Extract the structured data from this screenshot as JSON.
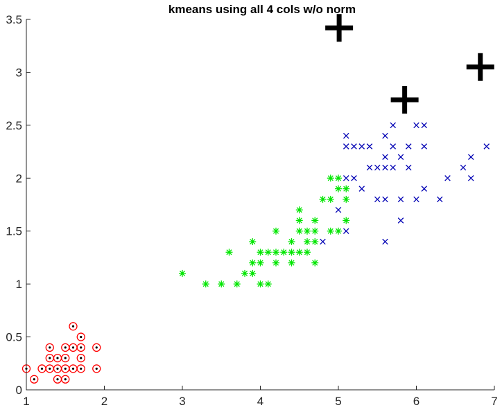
{
  "chart_data": {
    "type": "scatter",
    "title": "kmeans using all 4 cols w/o norm",
    "xlabel": "",
    "ylabel": "",
    "xlim": [
      1,
      7
    ],
    "ylim": [
      0,
      3.5
    ],
    "xticks": [
      "1",
      "2",
      "3",
      "4",
      "5",
      "6",
      "7"
    ],
    "yticks": [
      "0",
      "0.5",
      "1",
      "1.5",
      "2",
      "2.5",
      "3",
      "3.5"
    ],
    "grid": false,
    "series": [
      {
        "marker": "circle-dot",
        "color": "#ff0000",
        "points": [
          [
            1.0,
            0.2
          ],
          [
            1.1,
            0.1
          ],
          [
            1.2,
            0.2
          ],
          [
            1.3,
            0.2
          ],
          [
            1.3,
            0.3
          ],
          [
            1.3,
            0.4
          ],
          [
            1.4,
            0.1
          ],
          [
            1.4,
            0.2
          ],
          [
            1.4,
            0.3
          ],
          [
            1.5,
            0.1
          ],
          [
            1.5,
            0.2
          ],
          [
            1.5,
            0.3
          ],
          [
            1.5,
            0.4
          ],
          [
            1.6,
            0.2
          ],
          [
            1.6,
            0.4
          ],
          [
            1.6,
            0.6
          ],
          [
            1.7,
            0.2
          ],
          [
            1.7,
            0.3
          ],
          [
            1.7,
            0.4
          ],
          [
            1.7,
            0.5
          ],
          [
            1.9,
            0.2
          ],
          [
            1.9,
            0.4
          ]
        ]
      },
      {
        "marker": "asterisk",
        "color": "#00e600",
        "points": [
          [
            3.0,
            1.1
          ],
          [
            3.3,
            1.0
          ],
          [
            3.5,
            1.0
          ],
          [
            3.6,
            1.3
          ],
          [
            3.7,
            1.0
          ],
          [
            3.8,
            1.1
          ],
          [
            3.9,
            1.1
          ],
          [
            3.9,
            1.2
          ],
          [
            3.9,
            1.4
          ],
          [
            4.0,
            1.0
          ],
          [
            4.0,
            1.2
          ],
          [
            4.0,
            1.3
          ],
          [
            4.1,
            1.0
          ],
          [
            4.1,
            1.3
          ],
          [
            4.2,
            1.2
          ],
          [
            4.2,
            1.3
          ],
          [
            4.2,
            1.5
          ],
          [
            4.3,
            1.3
          ],
          [
            4.4,
            1.2
          ],
          [
            4.4,
            1.3
          ],
          [
            4.4,
            1.4
          ],
          [
            4.5,
            1.3
          ],
          [
            4.5,
            1.5
          ],
          [
            4.5,
            1.6
          ],
          [
            4.5,
            1.7
          ],
          [
            4.6,
            1.3
          ],
          [
            4.6,
            1.4
          ],
          [
            4.6,
            1.5
          ],
          [
            4.7,
            1.2
          ],
          [
            4.7,
            1.4
          ],
          [
            4.7,
            1.5
          ],
          [
            4.7,
            1.6
          ],
          [
            4.8,
            1.8
          ],
          [
            4.9,
            1.5
          ],
          [
            4.9,
            1.8
          ],
          [
            4.9,
            2.0
          ],
          [
            5.0,
            1.5
          ],
          [
            5.0,
            1.9
          ],
          [
            5.0,
            2.0
          ],
          [
            5.1,
            1.6
          ],
          [
            5.1,
            1.8
          ],
          [
            5.1,
            1.9
          ]
        ]
      },
      {
        "marker": "x",
        "color": "#0000b4",
        "points": [
          [
            4.8,
            1.4
          ],
          [
            5.0,
            1.7
          ],
          [
            5.1,
            1.5
          ],
          [
            5.1,
            2.0
          ],
          [
            5.1,
            2.3
          ],
          [
            5.1,
            2.4
          ],
          [
            5.2,
            2.0
          ],
          [
            5.2,
            2.3
          ],
          [
            5.3,
            1.9
          ],
          [
            5.3,
            2.3
          ],
          [
            5.4,
            2.1
          ],
          [
            5.4,
            2.3
          ],
          [
            5.5,
            1.8
          ],
          [
            5.5,
            2.1
          ],
          [
            5.6,
            1.4
          ],
          [
            5.6,
            1.8
          ],
          [
            5.6,
            2.1
          ],
          [
            5.6,
            2.2
          ],
          [
            5.6,
            2.4
          ],
          [
            5.7,
            2.1
          ],
          [
            5.7,
            2.3
          ],
          [
            5.7,
            2.5
          ],
          [
            5.8,
            1.6
          ],
          [
            5.8,
            1.8
          ],
          [
            5.8,
            2.2
          ],
          [
            5.9,
            2.1
          ],
          [
            5.9,
            2.3
          ],
          [
            6.0,
            1.8
          ],
          [
            6.0,
            2.5
          ],
          [
            6.1,
            1.9
          ],
          [
            6.1,
            2.3
          ],
          [
            6.1,
            2.5
          ],
          [
            6.3,
            1.8
          ],
          [
            6.4,
            2.0
          ],
          [
            6.6,
            2.1
          ],
          [
            6.7,
            2.0
          ],
          [
            6.7,
            2.2
          ],
          [
            6.9,
            2.3
          ]
        ]
      },
      {
        "marker": "centroid-plus",
        "color": "#000000",
        "points": [
          [
            5.01,
            3.42
          ],
          [
            5.85,
            2.74
          ],
          [
            6.82,
            3.05
          ]
        ]
      }
    ]
  }
}
